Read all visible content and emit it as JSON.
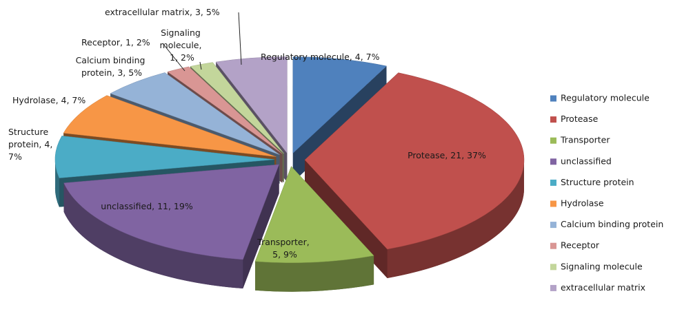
{
  "chart_data": {
    "type": "pie",
    "categories": [
      "Regulatory molecule",
      "Protease",
      "Transporter",
      "unclassified",
      "Structure protein",
      "Hydrolase",
      "Calcium binding protein",
      "Receptor",
      "Signaling molecule",
      "extracellular matrix"
    ],
    "values": [
      4,
      21,
      5,
      11,
      4,
      4,
      3,
      1,
      1,
      3
    ],
    "value_labels": [
      "Regulatory molecule, 4, 7%",
      "Protease, 21, 37%",
      "Transporter, 5, 9%",
      "unclassified, 11, 19%",
      "Structure protein, 4, 7%",
      "Hydrolase, 4, 7%",
      "Calcium binding protein, 3, 5%",
      "Receptor, 1, 2%",
      "Signaling molecule, 1, 2%",
      "extracellular matrix, 3, 5%"
    ],
    "colors": [
      "#4f81bd",
      "#c0504d",
      "#9bbb59",
      "#8064a2",
      "#4bacc6",
      "#f79646",
      "#95b3d7",
      "#d99694",
      "#c3d69b",
      "#b3a2c7"
    ],
    "legend": "right"
  }
}
